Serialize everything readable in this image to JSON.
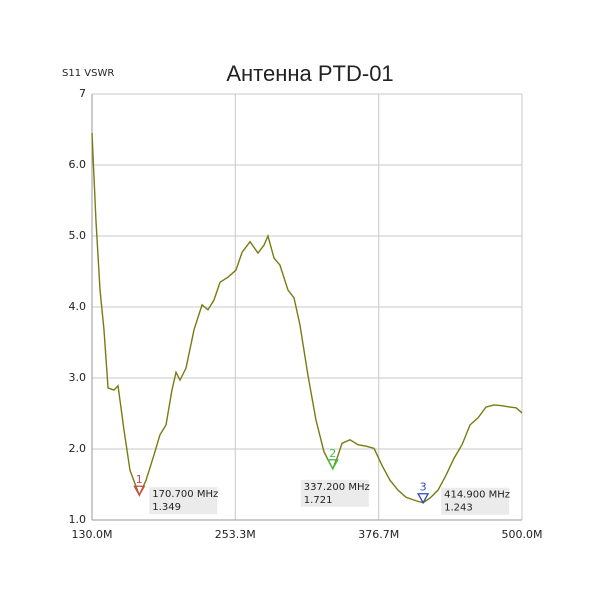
{
  "chart_data": {
    "type": "line",
    "title": "Антенна PTD-01",
    "y_label": "S11 VSWR",
    "x": [
      130.0,
      133.4,
      136.9,
      140.3,
      143.8,
      148.9,
      152.4,
      157.5,
      162.7,
      170.7,
      176.5,
      183.4,
      188.5,
      193.7,
      198.8,
      202.3,
      205.7,
      210.9,
      217.8,
      224.7,
      229.8,
      235.0,
      240.2,
      247.0,
      253.9,
      259.1,
      266.0,
      272.8,
      278.0,
      281.4,
      286.6,
      291.7,
      298.6,
      303.8,
      308.9,
      315.8,
      322.7,
      329.6,
      337.2,
      341.5,
      345.1,
      352.0,
      358.9,
      365.8,
      372.7,
      379.5,
      386.4,
      393.3,
      400.2,
      407.1,
      414.9,
      420.9,
      427.7,
      434.6,
      441.5,
      448.4,
      455.3,
      462.2,
      469.0,
      475.9,
      482.8,
      489.7,
      494.9,
      500.0
    ],
    "series": [
      {
        "color": "#7a7a10",
        "values": [
          6.45,
          5.22,
          4.24,
          3.68,
          2.86,
          2.83,
          2.89,
          2.27,
          1.7,
          1.349,
          1.56,
          1.92,
          2.2,
          2.34,
          2.83,
          3.08,
          2.97,
          3.14,
          3.68,
          4.03,
          3.96,
          4.1,
          4.35,
          4.42,
          4.52,
          4.77,
          4.92,
          4.76,
          4.87,
          5.0,
          4.69,
          4.59,
          4.24,
          4.13,
          3.75,
          3.04,
          2.41,
          1.96,
          1.721,
          1.9,
          2.08,
          2.13,
          2.06,
          2.04,
          2.01,
          1.77,
          1.56,
          1.42,
          1.32,
          1.28,
          1.243,
          1.31,
          1.42,
          1.63,
          1.87,
          2.06,
          2.34,
          2.44,
          2.59,
          2.62,
          2.61,
          2.59,
          2.58,
          2.51
        ]
      }
    ],
    "xlim": [
      130.0,
      500.0
    ],
    "xticks": [
      {
        "value": 130.0,
        "label": "130.0M"
      },
      {
        "value": 253.3,
        "label": "253.3M"
      },
      {
        "value": 376.7,
        "label": "376.7M"
      },
      {
        "value": 500.0,
        "label": "500.0M"
      }
    ],
    "ylim": [
      1,
      7
    ],
    "yticks": [
      {
        "value": 1,
        "label": "1.0"
      },
      {
        "value": 2,
        "label": "2.0"
      },
      {
        "value": 3,
        "label": "3.0"
      },
      {
        "value": 4,
        "label": "4.0"
      },
      {
        "value": 5,
        "label": "5.0"
      },
      {
        "value": 6,
        "label": "6.0"
      },
      7
    ],
    "grid": true,
    "markers": [
      {
        "label": "1",
        "freq": 170.7,
        "freq_label": "170.700 MHz",
        "vswr": 1.349,
        "color": "#d04848"
      },
      {
        "label": "2",
        "freq": 337.2,
        "freq_label": "337.200 MHz",
        "vswr": 1.721,
        "color": "#48c048"
      },
      {
        "label": "3",
        "freq": 414.9,
        "freq_label": "414.900 MHz",
        "vswr": 1.243,
        "color": "#3048c0"
      }
    ]
  }
}
